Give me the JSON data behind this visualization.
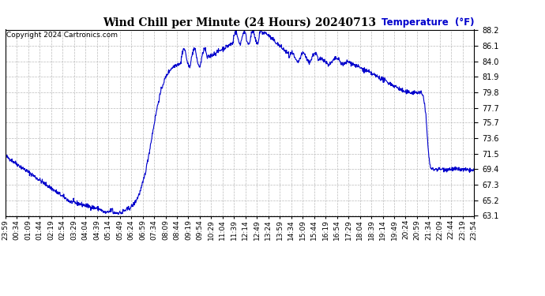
{
  "title": "Wind Chill per Minute (24 Hours) 20240713",
  "ylabel": "Temperature  (°F)",
  "copyright": "Copyright 2024 Cartronics.com",
  "line_color": "#0000CC",
  "background_color": "#ffffff",
  "grid_color": "#bbbbbb",
  "ylabel_color": "#0000CC",
  "ylim": [
    63.1,
    88.2
  ],
  "yticks": [
    63.1,
    65.2,
    67.3,
    69.4,
    71.5,
    73.6,
    75.7,
    77.7,
    79.8,
    81.9,
    84.0,
    86.1,
    88.2
  ],
  "xtick_labels": [
    "23:59",
    "00:34",
    "01:09",
    "01:44",
    "02:19",
    "02:54",
    "03:29",
    "04:04",
    "04:39",
    "05:14",
    "05:49",
    "06:24",
    "06:59",
    "07:34",
    "08:09",
    "08:44",
    "09:19",
    "09:54",
    "10:29",
    "11:04",
    "11:39",
    "12:14",
    "12:49",
    "13:24",
    "13:59",
    "14:34",
    "15:09",
    "15:44",
    "16:19",
    "16:54",
    "17:29",
    "18:04",
    "18:39",
    "19:14",
    "19:49",
    "20:24",
    "20:59",
    "21:34",
    "22:09",
    "22:44",
    "23:19",
    "23:54"
  ],
  "num_points": 1440
}
